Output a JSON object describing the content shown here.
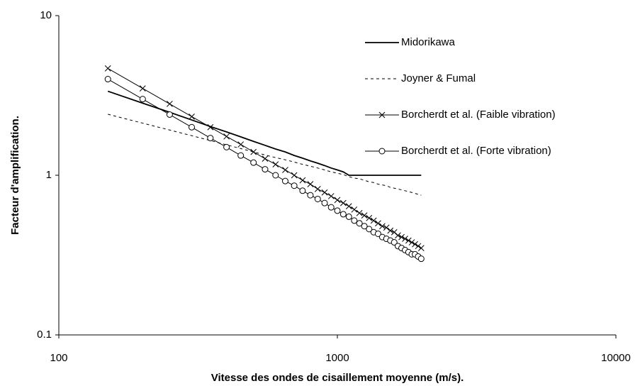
{
  "chart_data": {
    "type": "line",
    "xlabel": "Vitesse des ondes de cisaillement moyenne (m/s).",
    "ylabel": "Facteur d'amplification.",
    "xscale": "log",
    "yscale": "log",
    "xlim": [
      100,
      10000
    ],
    "ylim": [
      0.1,
      10
    ],
    "xticks": [
      100,
      1000,
      10000
    ],
    "yticks": [
      0.1,
      1,
      10
    ],
    "grid": false,
    "legend": "upper right",
    "x": [
      150,
      200,
      250,
      300,
      350,
      400,
      450,
      500,
      550,
      600,
      650,
      700,
      750,
      800,
      850,
      900,
      950,
      1000,
      1050,
      1100,
      1150,
      1200,
      1250,
      1300,
      1350,
      1400,
      1450,
      1500,
      1550,
      1600,
      1650,
      1700,
      1750,
      1800,
      1850,
      1900,
      1950,
      2000
    ],
    "series": [
      {
        "name": "Midorikawa",
        "color": "#000000",
        "dash": false,
        "marker": "none",
        "values": [
          3.36,
          2.83,
          2.48,
          2.22,
          2.02,
          1.87,
          1.74,
          1.63,
          1.54,
          1.46,
          1.4,
          1.33,
          1.28,
          1.23,
          1.19,
          1.15,
          1.11,
          1.08,
          1.05,
          1,
          1,
          1,
          1,
          1,
          1,
          1,
          1,
          1,
          1,
          1,
          1,
          1,
          1,
          1,
          1,
          1,
          1,
          1
        ]
      },
      {
        "name": "Joyner & Fumal",
        "color": "#000000",
        "dash": true,
        "marker": "none",
        "values": [
          2.41,
          2.12,
          1.92,
          1.77,
          1.65,
          1.55,
          1.47,
          1.4,
          1.34,
          1.29,
          1.25,
          1.21,
          1.17,
          1.14,
          1.11,
          1.08,
          1.05,
          1.03,
          1.01,
          0.98,
          0.96,
          0.95,
          0.93,
          0.91,
          0.9,
          0.88,
          0.87,
          0.86,
          0.84,
          0.83,
          0.82,
          0.81,
          0.8,
          0.79,
          0.78,
          0.77,
          0.76,
          0.75
        ]
      },
      {
        "name": "Borcherdt et al. (Faible vibration)",
        "color": "#000000",
        "dash": false,
        "marker": "x",
        "values": [
          4.67,
          3.5,
          2.8,
          2.33,
          2,
          1.75,
          1.56,
          1.4,
          1.27,
          1.17,
          1.08,
          1,
          0.93,
          0.88,
          0.82,
          0.78,
          0.74,
          0.7,
          0.67,
          0.64,
          0.61,
          0.58,
          0.56,
          0.54,
          0.52,
          0.5,
          0.48,
          0.47,
          0.45,
          0.44,
          0.42,
          0.41,
          0.4,
          0.39,
          0.38,
          0.37,
          0.36,
          0.35
        ]
      },
      {
        "name": "Borcherdt et al. (Forte vibration)",
        "color": "#000000",
        "dash": false,
        "marker": "circle",
        "values": [
          4,
          3,
          2.4,
          2,
          1.71,
          1.5,
          1.33,
          1.2,
          1.09,
          1,
          0.92,
          0.86,
          0.8,
          0.75,
          0.71,
          0.67,
          0.63,
          0.6,
          0.57,
          0.55,
          0.52,
          0.5,
          0.48,
          0.46,
          0.44,
          0.43,
          0.41,
          0.4,
          0.39,
          0.38,
          0.36,
          0.35,
          0.34,
          0.33,
          0.32,
          0.32,
          0.31,
          0.3
        ]
      }
    ]
  }
}
